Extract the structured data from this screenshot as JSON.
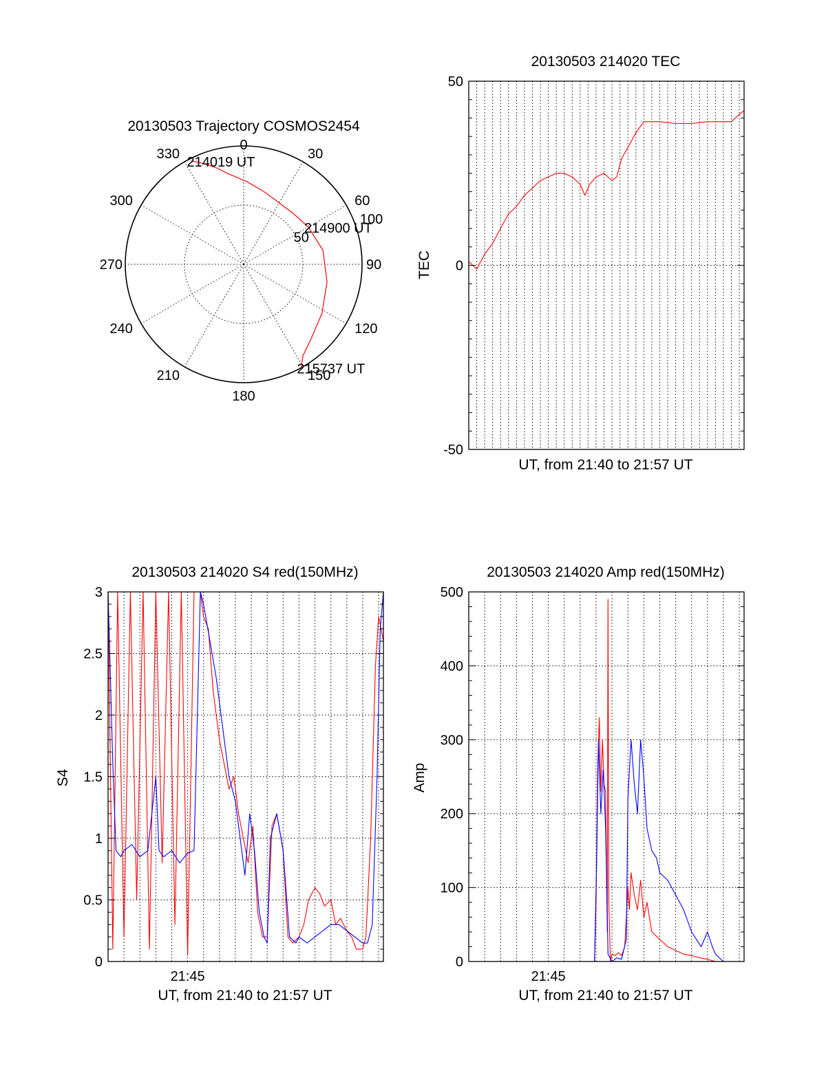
{
  "figure": {
    "background": "#ffffff",
    "series_colors": {
      "red": "#ff0000",
      "blue": "#0000ff"
    }
  },
  "chart_data": [
    {
      "type": "polar",
      "title": "20130503 Trajectory COSMOS2454",
      "angle_labels": [
        "0",
        "30",
        "60",
        "90",
        "120",
        "150",
        "180",
        "210",
        "240",
        "270",
        "300",
        "330"
      ],
      "angle_values": [
        0,
        30,
        60,
        90,
        120,
        150,
        180,
        210,
        240,
        270,
        300,
        330
      ],
      "radial_labels": [
        "50",
        "100"
      ],
      "radial_values": [
        50,
        100
      ],
      "radial_max": 100,
      "trajectory": {
        "color": "#ff0000",
        "points": [
          [
            333,
            98
          ],
          [
            338,
            92
          ],
          [
            344,
            85
          ],
          [
            351,
            77
          ],
          [
            2,
            70
          ],
          [
            15,
            64
          ],
          [
            30,
            60
          ],
          [
            45,
            60
          ],
          [
            60,
            63
          ],
          [
            80,
            68
          ],
          [
            102,
            72
          ],
          [
            122,
            78
          ],
          [
            138,
            85
          ],
          [
            147,
            92
          ],
          [
            151,
            100
          ]
        ]
      },
      "annotations": [
        {
          "text": "214019 UT",
          "az": 333,
          "zen": 98
        },
        {
          "text": "214900 UT",
          "az": 60,
          "zen": 63
        },
        {
          "text": "215737 UT",
          "az": 151,
          "zen": 100
        }
      ]
    },
    {
      "type": "line",
      "title": "20130503 214020 TEC",
      "xlabel": "UT, from 21:40 to 21:57 UT",
      "ylabel": "TEC",
      "xlim": [
        0,
        17.3
      ],
      "ylim": [
        -50,
        50
      ],
      "yticks": [
        -50,
        0,
        50
      ],
      "x_grid_step": 0.5,
      "series": [
        {
          "name": "TEC",
          "color": "#ff0000",
          "x": [
            0,
            0.5,
            1,
            1.5,
            2,
            2.5,
            3,
            3.5,
            4,
            4.5,
            5,
            5.5,
            6,
            6.5,
            7,
            7.3,
            7.6,
            8,
            8.5,
            9,
            9.3,
            9.6,
            10,
            10.5,
            11,
            12,
            13,
            14,
            15,
            16,
            16.5,
            17,
            17.3
          ],
          "y": [
            1,
            -1,
            3,
            6,
            10,
            14,
            16,
            19,
            21,
            23,
            24,
            25,
            25,
            24,
            22,
            19,
            22,
            24,
            25,
            23,
            24,
            29,
            32,
            36,
            39,
            39,
            38.5,
            38.5,
            39,
            39,
            39,
            41,
            42
          ]
        }
      ]
    },
    {
      "type": "line",
      "title": "20130503 214020 S4 red(150MHz)",
      "xlabel": "UT, from 21:40 to 21:57 UT",
      "ylabel": "S4",
      "xlim": [
        0,
        17.3
      ],
      "ylim": [
        0,
        3
      ],
      "yticks": [
        0,
        0.5,
        1,
        1.5,
        2,
        2.5,
        3
      ],
      "xticks": [
        {
          "value": 5,
          "label": "21:45"
        }
      ],
      "x_grid_step": 1,
      "series": [
        {
          "name": "S4 red",
          "color": "#ff0000",
          "x": [
            0,
            0.3,
            0.6,
            1,
            1.4,
            1.8,
            2.2,
            2.6,
            3,
            3.4,
            3.8,
            4.2,
            4.6,
            5,
            5.4,
            5.8,
            6,
            6.3,
            6.6,
            7,
            7.3,
            7.6,
            7.9,
            8.2,
            8.5,
            8.8,
            9.1,
            9.4,
            9.7,
            10,
            10.3,
            10.6,
            11,
            11.3,
            11.6,
            12,
            12.3,
            12.6,
            13,
            13.3,
            13.6,
            14,
            14.3,
            14.6,
            15,
            15.3,
            15.6,
            16,
            16.2,
            16.5,
            16.8,
            17,
            17.3
          ],
          "y": [
            3,
            0.1,
            3,
            0.2,
            3,
            0.5,
            3,
            0.1,
            3,
            0.8,
            3,
            0.3,
            3,
            0.05,
            3,
            3,
            2.8,
            2.7,
            2.2,
            1.8,
            1.6,
            1.4,
            1.5,
            1.2,
            1,
            0.8,
            1.1,
            0.4,
            0.2,
            0.2,
            1.1,
            1.2,
            0.9,
            0.2,
            0.15,
            0.2,
            0.3,
            0.5,
            0.6,
            0.55,
            0.45,
            0.5,
            0.3,
            0.35,
            0.25,
            0.2,
            0.1,
            0.1,
            0.2,
            1,
            2.4,
            2.8,
            2.6
          ]
        },
        {
          "name": "S4 blue",
          "color": "#0000ff",
          "x": [
            0,
            0.3,
            0.5,
            0.8,
            1,
            1.5,
            2,
            2.5,
            3,
            3.2,
            3.5,
            4,
            4.5,
            5,
            5.4,
            5.8,
            6,
            6.4,
            6.8,
            7.2,
            7.6,
            8,
            8.3,
            8.6,
            8.9,
            9.2,
            9.5,
            9.8,
            10,
            10.2,
            10.6,
            11,
            11.4,
            11.8,
            12,
            12.5,
            13,
            13.5,
            14,
            14.5,
            15,
            15.5,
            16,
            16.3,
            16.6,
            16.9,
            17.1,
            17.3
          ],
          "y": [
            3,
            1.6,
            0.9,
            0.85,
            0.9,
            0.95,
            0.85,
            0.9,
            1.5,
            0.9,
            0.85,
            0.9,
            0.8,
            0.88,
            0.9,
            3,
            2.9,
            2.6,
            2.3,
            1.9,
            1.5,
            1.3,
            1.0,
            0.7,
            1.2,
            0.9,
            0.4,
            0.2,
            0.15,
            1.0,
            1.2,
            0.9,
            0.2,
            0.15,
            0.2,
            0.15,
            0.2,
            0.25,
            0.3,
            0.3,
            0.25,
            0.2,
            0.15,
            0.15,
            0.3,
            1.5,
            2.7,
            3
          ]
        }
      ]
    },
    {
      "type": "line",
      "title": "20130503 214020 Amp red(150MHz)",
      "xlabel": "UT, from 21:40 to 21:57 UT",
      "ylabel": "Amp",
      "xlim": [
        0,
        17.3
      ],
      "ylim": [
        0,
        500
      ],
      "yticks": [
        0,
        100,
        200,
        300,
        400,
        500
      ],
      "xticks": [
        {
          "value": 5,
          "label": "21:45"
        }
      ],
      "x_grid_step": 1,
      "series": [
        {
          "name": "Amp red",
          "color": "#ff0000",
          "x": [
            0,
            7.5,
            7.9,
            8.0,
            8.1,
            8.2,
            8.3,
            8.4,
            8.5,
            8.6,
            8.7,
            8.75,
            8.8,
            8.9,
            9.0,
            9.2,
            9.4,
            9.6,
            9.8,
            10.0,
            10.1,
            10.2,
            10.4,
            10.6,
            10.8,
            11.0,
            11.2,
            11.5,
            12.0,
            12.5,
            13.0,
            13.5,
            14.0,
            14.5,
            15.0,
            15.5,
            17.3
          ],
          "y": [
            0,
            0,
            0,
            80,
            260,
            330,
            230,
            300,
            240,
            230,
            40,
            490,
            80,
            0,
            10,
            8,
            12,
            8,
            20,
            100,
            70,
            120,
            90,
            70,
            110,
            60,
            80,
            40,
            30,
            20,
            15,
            10,
            8,
            5,
            3,
            0,
            0
          ]
        },
        {
          "name": "Amp blue",
          "color": "#0000ff",
          "x": [
            0,
            7.6,
            7.9,
            8.05,
            8.15,
            8.3,
            8.45,
            8.6,
            8.75,
            9.0,
            9.3,
            9.6,
            9.9,
            10.0,
            10.2,
            10.4,
            10.6,
            10.8,
            11.0,
            11.2,
            11.5,
            11.8,
            12.0,
            12.5,
            13.0,
            13.5,
            14.0,
            14.3,
            14.6,
            15.0,
            15.3,
            15.5,
            16.0,
            17.3
          ],
          "y": [
            0,
            0,
            0,
            150,
            300,
            200,
            260,
            180,
            10,
            0,
            5,
            3,
            30,
            220,
            300,
            240,
            200,
            300,
            250,
            180,
            150,
            140,
            120,
            110,
            90,
            70,
            40,
            30,
            20,
            40,
            20,
            10,
            0,
            0
          ]
        }
      ]
    }
  ]
}
